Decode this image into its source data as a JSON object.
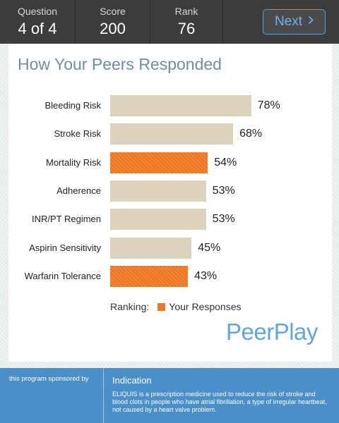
{
  "stats": {
    "question_label": "Question",
    "question_value": "4 of 4",
    "score_label": "Score",
    "score_value": "200",
    "rank_label": "Rank",
    "rank_value": "76"
  },
  "nav": {
    "next_label": "Next",
    "next_icon": "chevron-right-icon"
  },
  "card": {
    "title": "How Your Peers Responded"
  },
  "chart_data": {
    "type": "bar",
    "orientation": "horizontal",
    "title": "How Your Peers Responded",
    "categories": [
      "Bleeding Risk",
      "Stroke Risk",
      "Mortality Risk",
      "Adherence",
      "INR/PT Regimen",
      "Aspirin Sensitivity",
      "Warfarin Tolerance"
    ],
    "values": [
      78,
      68,
      54,
      53,
      53,
      45,
      43
    ],
    "value_labels": [
      "78%",
      "68%",
      "54%",
      "53%",
      "53%",
      "45%",
      "43%"
    ],
    "highlighted": [
      false,
      false,
      true,
      false,
      false,
      false,
      true
    ],
    "unit": "%",
    "xlim": [
      0,
      100
    ],
    "colors": {
      "default": "#dbd3bb",
      "highlight": "#ef7722"
    },
    "legend": {
      "prefix": "Ranking:",
      "label": "Your Responses"
    }
  },
  "brand": {
    "name": "PeerPlay"
  },
  "footer": {
    "sponsor_text": "this program sponsored by",
    "indication_title": "Indication",
    "indication_text": "ELIQUIS is a prescription medicine used to reduce the risk of stroke and blood clots in people who have atrial fibrillation, a type of irregular heartbeat, not caused by a heart valve problem."
  },
  "colors": {
    "topbar": "#3c3c3c",
    "accent": "#5fa7de",
    "footer": "#4a8fc7",
    "title": "#6f8fa0"
  }
}
